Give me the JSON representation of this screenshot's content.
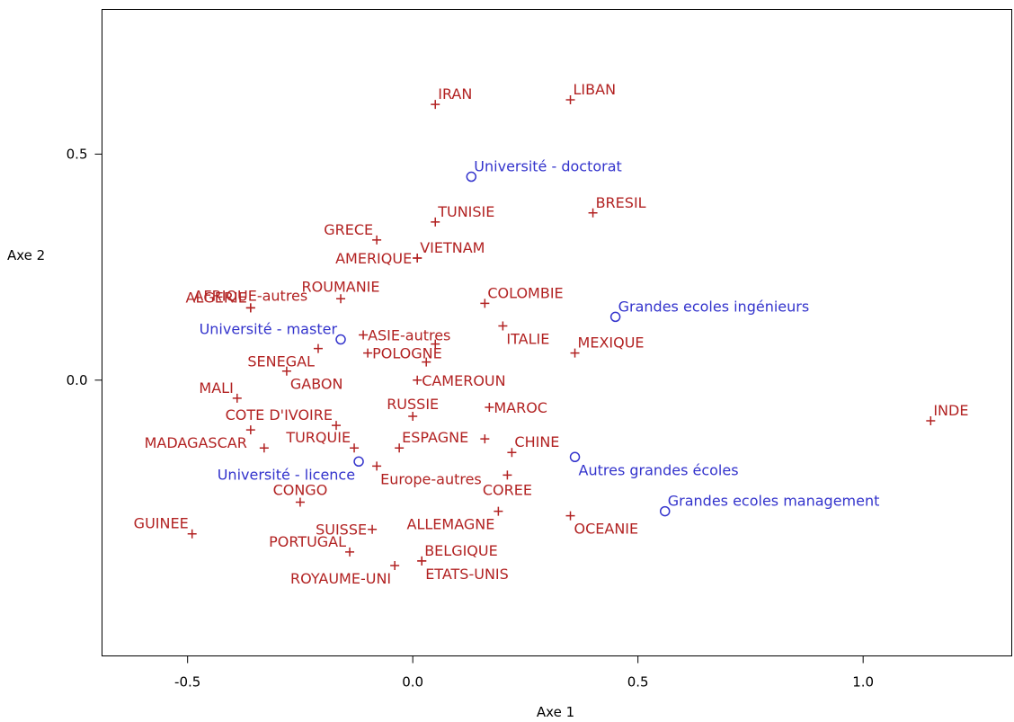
{
  "chart_data": {
    "type": "scatter",
    "xlabel": "Axe 1",
    "ylabel": "Axe 2",
    "xlim": [
      -0.69,
      1.33
    ],
    "ylim": [
      -0.61,
      0.82
    ],
    "xticks": [
      {
        "value": -0.5,
        "label": "-0.5"
      },
      {
        "value": 0.0,
        "label": "0.0"
      },
      {
        "value": 0.5,
        "label": "0.5"
      },
      {
        "value": 1.0,
        "label": "1.0"
      }
    ],
    "yticks": [
      {
        "value": 0.0,
        "label": "0.0"
      },
      {
        "value": 0.5,
        "label": "0.5"
      }
    ],
    "grid": false,
    "colors": {
      "pays": "#b22222",
      "formation": "#3333cc"
    },
    "series": [
      {
        "marker": "plus",
        "color_key": "pays",
        "points": [
          {
            "label": "IRAN",
            "x": 0.05,
            "y": 0.61,
            "pos": "ne"
          },
          {
            "label": "LIBAN",
            "x": 0.35,
            "y": 0.62,
            "pos": "ne"
          },
          {
            "label": "BRESIL",
            "x": 0.4,
            "y": 0.37,
            "pos": "ne"
          },
          {
            "label": "TUNISIE",
            "x": 0.05,
            "y": 0.35,
            "pos": "ne"
          },
          {
            "label": "GRECE",
            "x": -0.08,
            "y": 0.31,
            "pos": "nw"
          },
          {
            "label": "VIETNAM",
            "x": 0.01,
            "y": 0.27,
            "pos": "ne"
          },
          {
            "label": "AMERIQUE",
            "x": 0.01,
            "y": 0.27,
            "pos": "w"
          },
          {
            "label": "AFRIQUE-autres",
            "x": -0.36,
            "y": 0.16,
            "pos": "n"
          },
          {
            "label": "ROUMANIE",
            "x": -0.16,
            "y": 0.18,
            "pos": "n"
          },
          {
            "label": "COLOMBIE",
            "x": 0.16,
            "y": 0.17,
            "pos": "ne"
          },
          {
            "label": "ALGERIE",
            "x": -0.36,
            "y": 0.16,
            "pos": "nw"
          },
          {
            "label": "ASIE-autres",
            "x": -0.11,
            "y": 0.1,
            "pos": "e"
          },
          {
            "label": "ITALIE",
            "x": 0.2,
            "y": 0.12,
            "pos": "se"
          },
          {
            "label": "MEXIQUE",
            "x": 0.36,
            "y": 0.06,
            "pos": "ne"
          },
          {
            "label": "SENEGAL",
            "x": -0.21,
            "y": 0.07,
            "pos": "sw"
          },
          {
            "label": "POLOGNE",
            "x": -0.1,
            "y": 0.06,
            "pos": "e"
          },
          {
            "label": "",
            "x": 0.05,
            "y": 0.08,
            "pos": "n"
          },
          {
            "label": "",
            "x": 0.03,
            "y": 0.04,
            "pos": "n"
          },
          {
            "label": "MALI",
            "x": -0.39,
            "y": -0.04,
            "pos": "nw"
          },
          {
            "label": "GABON",
            "x": -0.28,
            "y": 0.02,
            "pos": "se"
          },
          {
            "label": "CAMEROUN",
            "x": 0.01,
            "y": 0.0,
            "pos": "e"
          },
          {
            "label": "RUSSIE",
            "x": 0.0,
            "y": -0.08,
            "pos": "n"
          },
          {
            "label": "MAROC",
            "x": 0.17,
            "y": -0.06,
            "pos": "e"
          },
          {
            "label": "COTE D'IVOIRE",
            "x": -0.17,
            "y": -0.1,
            "pos": "nw"
          },
          {
            "label": "INDE",
            "x": 1.15,
            "y": -0.09,
            "pos": "ne"
          },
          {
            "label": "MADAGASCAR",
            "x": -0.36,
            "y": -0.11,
            "pos": "sw"
          },
          {
            "label": "TURQUIE",
            "x": -0.13,
            "y": -0.15,
            "pos": "nw"
          },
          {
            "label": "",
            "x": -0.33,
            "y": -0.15,
            "pos": "n"
          },
          {
            "label": "ESPAGNE",
            "x": -0.03,
            "y": -0.15,
            "pos": "ne"
          },
          {
            "label": "",
            "x": 0.16,
            "y": -0.13,
            "pos": "n"
          },
          {
            "label": "CHINE",
            "x": 0.22,
            "y": -0.16,
            "pos": "ne"
          },
          {
            "label": "Europe-autres",
            "x": -0.08,
            "y": -0.19,
            "pos": "se"
          },
          {
            "label": "COREE",
            "x": 0.21,
            "y": -0.21,
            "pos": "s"
          },
          {
            "label": "CONGO",
            "x": -0.25,
            "y": -0.27,
            "pos": "n"
          },
          {
            "label": "SUISSE",
            "x": -0.09,
            "y": -0.33,
            "pos": "w"
          },
          {
            "label": "ALLEMAGNE",
            "x": 0.19,
            "y": -0.29,
            "pos": "sw"
          },
          {
            "label": "OCEANIE",
            "x": 0.35,
            "y": -0.3,
            "pos": "se"
          },
          {
            "label": "GUINEE",
            "x": -0.49,
            "y": -0.34,
            "pos": "nw"
          },
          {
            "label": "PORTUGAL",
            "x": -0.14,
            "y": -0.38,
            "pos": "nw"
          },
          {
            "label": "BELGIQUE",
            "x": 0.02,
            "y": -0.4,
            "pos": "ne"
          },
          {
            "label": "ROYAUME-UNI",
            "x": -0.04,
            "y": -0.41,
            "pos": "sw"
          },
          {
            "label": "ETATS-UNIS",
            "x": 0.02,
            "y": -0.4,
            "pos": "se"
          }
        ]
      },
      {
        "marker": "circle",
        "color_key": "formation",
        "points": [
          {
            "label": "Université - doctorat",
            "x": 0.13,
            "y": 0.45,
            "pos": "ne"
          },
          {
            "label": "Grandes ecoles ingénieurs",
            "x": 0.45,
            "y": 0.14,
            "pos": "ne"
          },
          {
            "label": "Université - master",
            "x": -0.16,
            "y": 0.09,
            "pos": "nw"
          },
          {
            "label": "Autres grandes écoles",
            "x": 0.36,
            "y": -0.17,
            "pos": "se"
          },
          {
            "label": "Université - licence",
            "x": -0.12,
            "y": -0.18,
            "pos": "sw"
          },
          {
            "label": "Grandes ecoles management",
            "x": 0.56,
            "y": -0.29,
            "pos": "ne"
          }
        ]
      }
    ]
  }
}
